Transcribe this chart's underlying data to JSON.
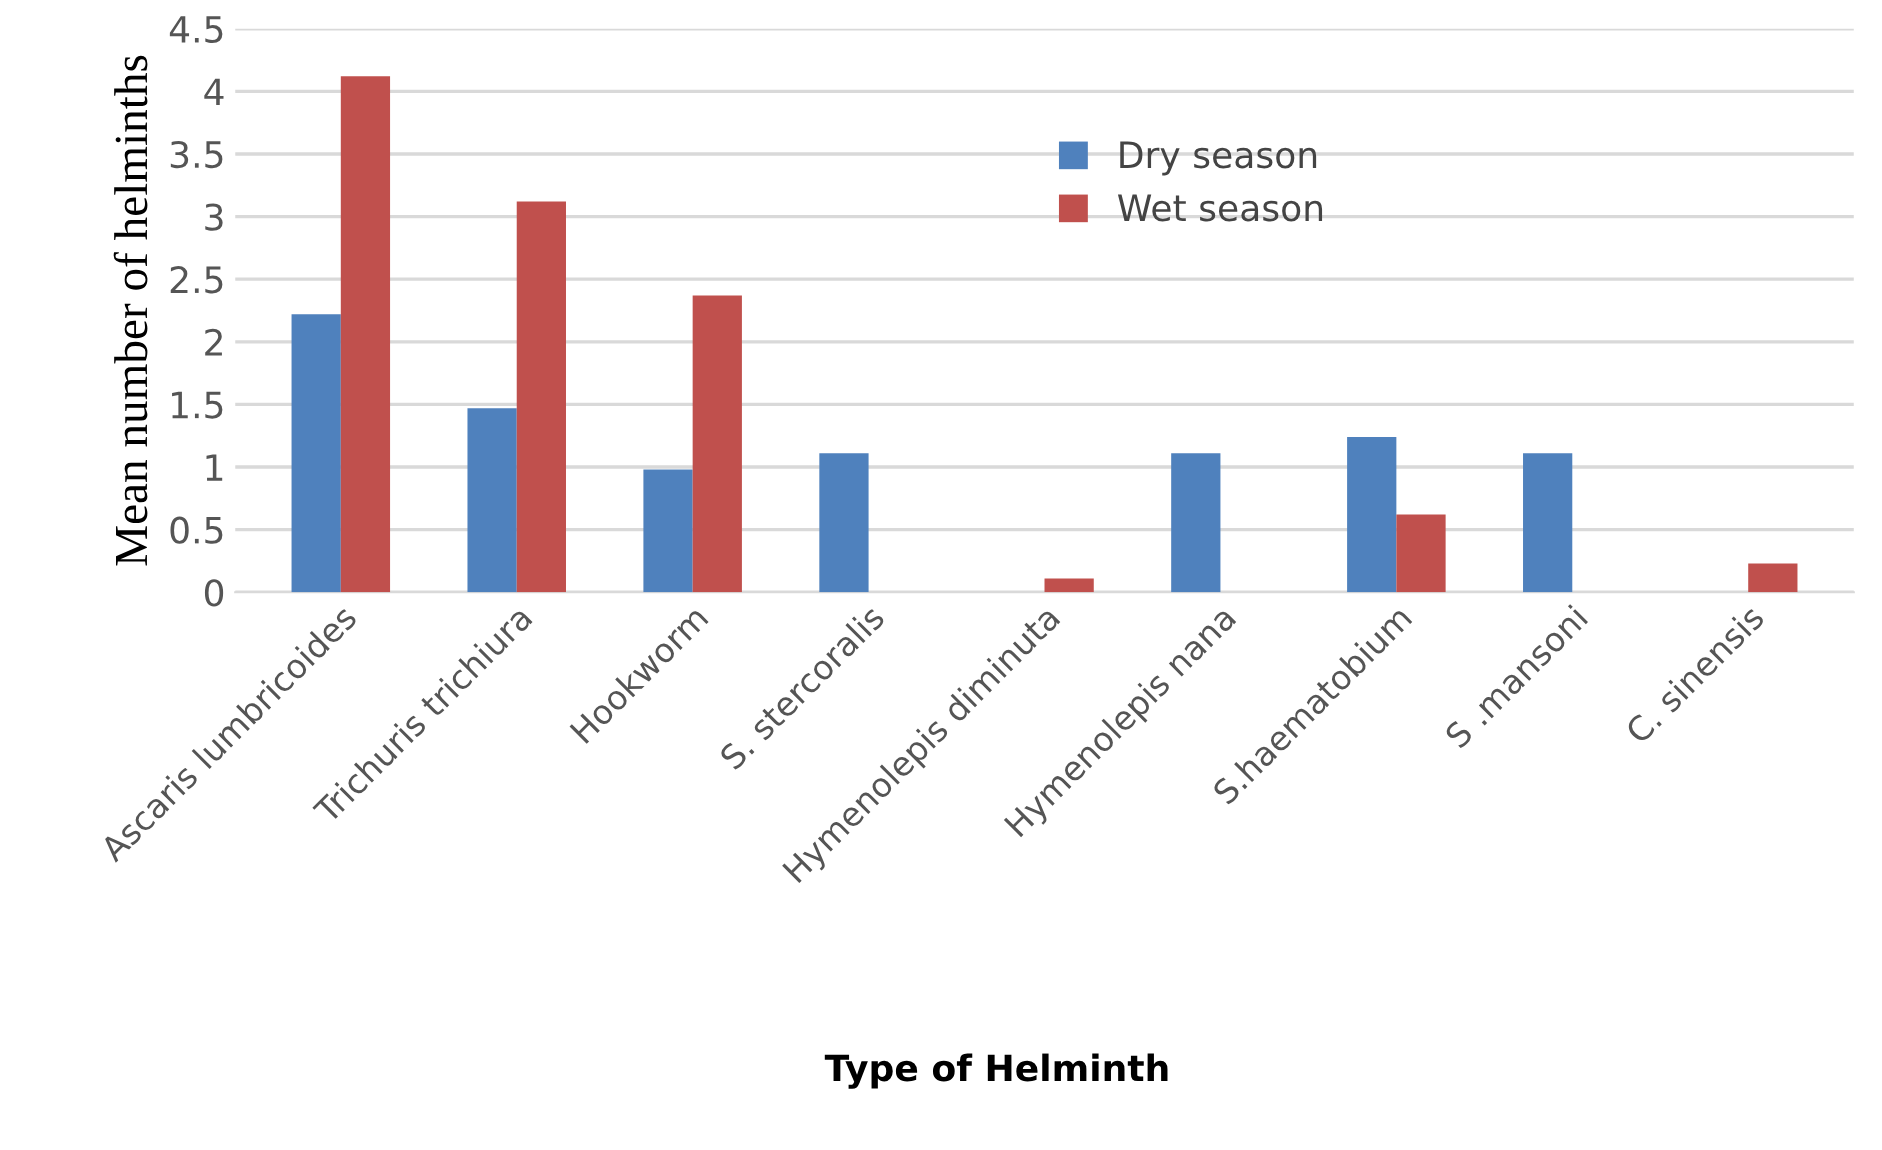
{
  "chart_data": {
    "type": "bar",
    "xlabel": "Type of Helminth",
    "ylabel": "Mean number of helminths",
    "categories": [
      "Ascaris lumbricoides",
      "Trichuris trichiura",
      "Hookworm",
      "S. stercoralis",
      "Hymenolepis diminuta",
      "Hymenolepis nana",
      "S.haematobium",
      "S .mansoni",
      "C. sinensis"
    ],
    "series": [
      {
        "name": "Dry season",
        "color": "#4f81bd",
        "values": [
          2.22,
          1.47,
          0.98,
          1.11,
          0,
          1.11,
          1.24,
          1.11,
          0
        ]
      },
      {
        "name": "Wet season",
        "color": "#c0504d",
        "values": [
          4.12,
          3.12,
          2.37,
          0,
          0.11,
          0,
          0.62,
          0,
          0.23
        ]
      }
    ],
    "ylim": [
      0,
      4.5
    ],
    "yticks": [
      0,
      0.5,
      1,
      1.5,
      2,
      2.5,
      3,
      3.5,
      4,
      4.5
    ],
    "grid": "y",
    "legend": "top"
  }
}
